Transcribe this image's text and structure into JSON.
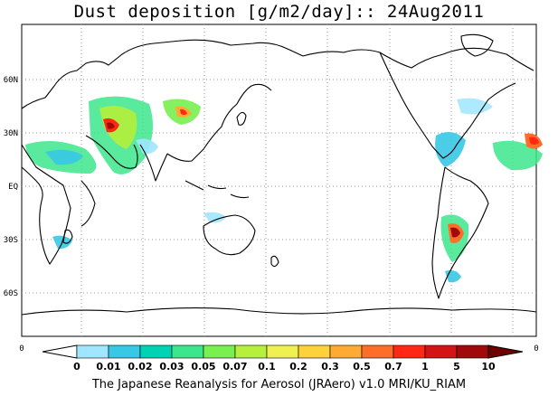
{
  "title": "Dust deposition [g/m2/day]:: 24Aug2011",
  "footer": "The Japanese Reanalysis for Aerosol (JRAero) v1.0 MRI/KU_RIAM",
  "lat_labels": [
    "60N",
    "30N",
    "EQ",
    "30S",
    "60S"
  ],
  "lon_edge_labels": [
    "0",
    "0"
  ],
  "colorbar": {
    "levels": [
      "0",
      "0.01",
      "0.02",
      "0.03",
      "0.05",
      "0.07",
      "0.1",
      "0.2",
      "0.3",
      "0.5",
      "0.7",
      "1",
      "5",
      "10"
    ],
    "colors": [
      "#ffffff",
      "#a0e6ff",
      "#37c8e6",
      "#00d2b4",
      "#3ce68c",
      "#78f050",
      "#b4f03c",
      "#f0f050",
      "#ffd23c",
      "#ffaa32",
      "#ff6e28",
      "#ff2814",
      "#d21414",
      "#a00a0a",
      "#6e0000"
    ]
  },
  "colors": {
    "coastline": "#000000",
    "grid": "#9a9a9a"
  }
}
